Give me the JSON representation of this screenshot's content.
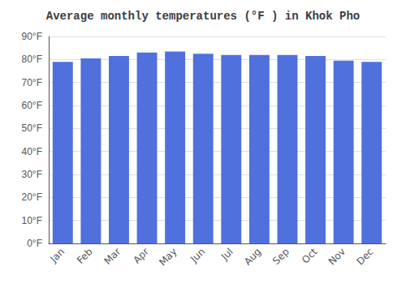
{
  "chart_data": {
    "type": "bar",
    "title": "Average monthly temperatures (°F ) in Khok Pho",
    "categories": [
      "Jan",
      "Feb",
      "Mar",
      "Apr",
      "May",
      "Jun",
      "Jul",
      "Aug",
      "Sep",
      "Oct",
      "Nov",
      "Dec"
    ],
    "values": [
      79,
      80.5,
      81.5,
      83,
      83.5,
      82.5,
      82,
      82,
      82,
      81.5,
      79.5,
      79
    ],
    "ylim": [
      0,
      90
    ],
    "yticks": [
      {
        "value": 0,
        "label": "0°F"
      },
      {
        "value": 10,
        "label": "10°F"
      },
      {
        "value": 20,
        "label": "20°F"
      },
      {
        "value": 30,
        "label": "30°F"
      },
      {
        "value": 40,
        "label": "40°F"
      },
      {
        "value": 50,
        "label": "50°F"
      },
      {
        "value": 60,
        "label": "60°F"
      },
      {
        "value": 70,
        "label": "70°F"
      },
      {
        "value": 80,
        "label": "80°F"
      },
      {
        "value": 90,
        "label": "90°F"
      }
    ],
    "grid": true
  }
}
